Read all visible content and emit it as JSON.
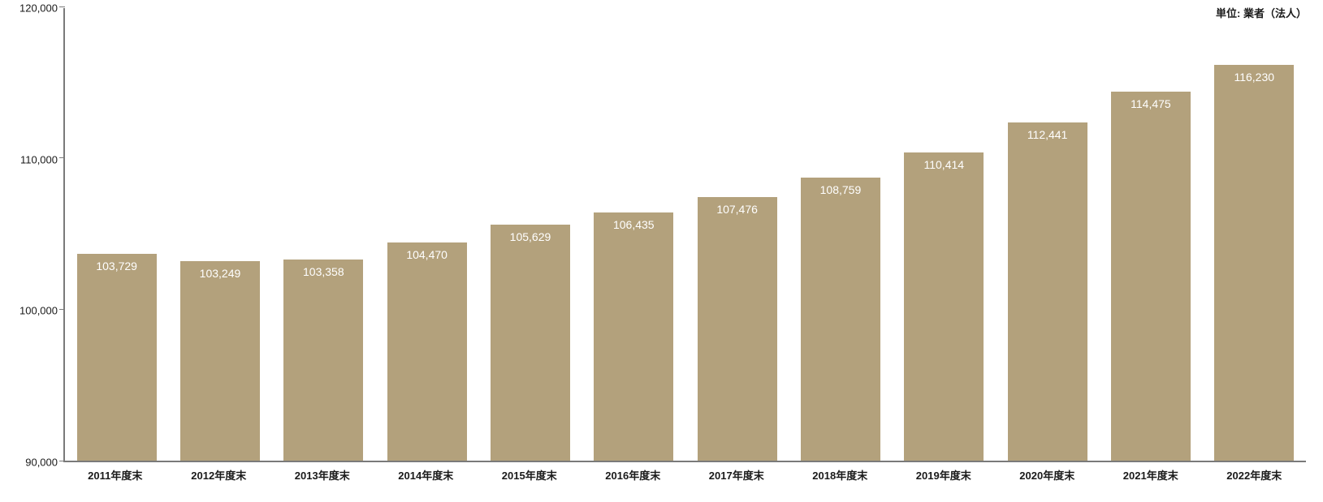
{
  "chart": {
    "type": "bar",
    "unit_label": "単位: 業者（法人）",
    "background_color": "#ffffff",
    "axis_color": "#7a7a7a",
    "bar_color": "#b3a17c",
    "bar_value_color": "#ffffff",
    "text_color": "#1a1a1a",
    "bar_width_ratio": 0.77,
    "value_fontsize": 14,
    "axis_label_fontsize": 13,
    "xlabel_fontweight": "bold",
    "ylim": [
      90000,
      120000
    ],
    "yticks": [
      90000,
      100000,
      110000,
      120000
    ],
    "ytick_labels": [
      "90,000",
      "100,000",
      "110,000",
      "120,000"
    ],
    "categories": [
      "2011年度末",
      "2012年度末",
      "2013年度末",
      "2014年度末",
      "2015年度末",
      "2016年度末",
      "2017年度末",
      "2018年度末",
      "2019年度末",
      "2020年度末",
      "2021年度末",
      "2022年度末"
    ],
    "values": [
      103729,
      103249,
      103358,
      104470,
      105629,
      106435,
      107476,
      108759,
      110414,
      112441,
      114475,
      116230
    ],
    "value_labels": [
      "103,729",
      "103,249",
      "103,358",
      "104,470",
      "105,629",
      "106,435",
      "107,476",
      "108,759",
      "110,414",
      "112,441",
      "114,475",
      "116,230"
    ]
  }
}
